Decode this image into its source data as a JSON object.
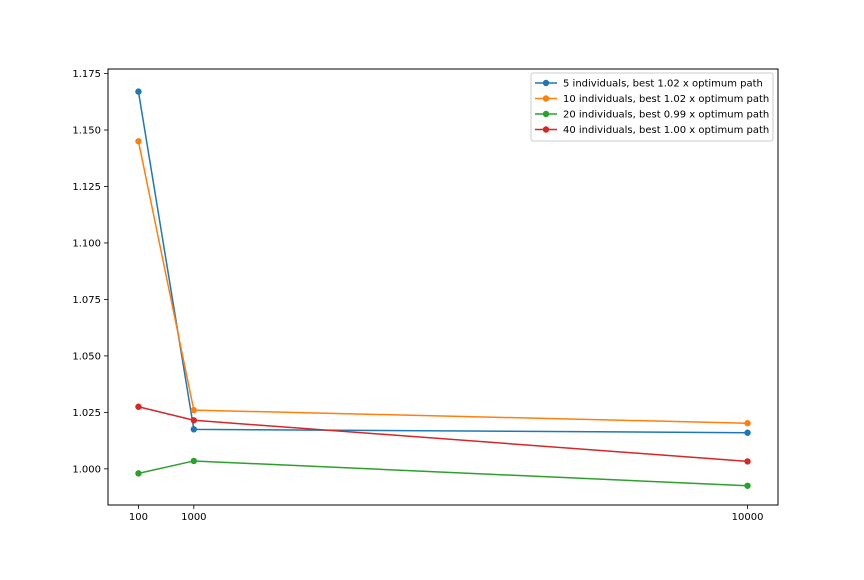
{
  "chart_data": {
    "type": "line",
    "x": [
      100,
      1000,
      10000
    ],
    "xticks": [
      "100",
      "1000",
      "10000"
    ],
    "ylim": [
      0.984,
      1.177
    ],
    "yticks": [
      "1.000",
      "1.025",
      "1.050",
      "1.075",
      "1.100",
      "1.125",
      "1.150",
      "1.175"
    ],
    "ytick_values": [
      1.0,
      1.025,
      1.05,
      1.075,
      1.1,
      1.125,
      1.15,
      1.175
    ],
    "grid": false,
    "legend_position": "upper right",
    "series": [
      {
        "name": "5 individuals, best 1.02 x optimum path",
        "color": "#1f77b4",
        "values": [
          1.167,
          1.0175,
          1.016
        ]
      },
      {
        "name": "10 individuals, best 1.02 x optimum path",
        "color": "#ff7f0e",
        "values": [
          1.145,
          1.026,
          1.0202
        ]
      },
      {
        "name": "20 individuals, best 0.99 x optimum path",
        "color": "#2ca02c",
        "values": [
          0.998,
          1.0035,
          0.9925
        ]
      },
      {
        "name": "40 individuals, best 1.00 x optimum path",
        "color": "#d62728",
        "values": [
          1.0275,
          1.0215,
          1.0033
        ]
      }
    ]
  }
}
